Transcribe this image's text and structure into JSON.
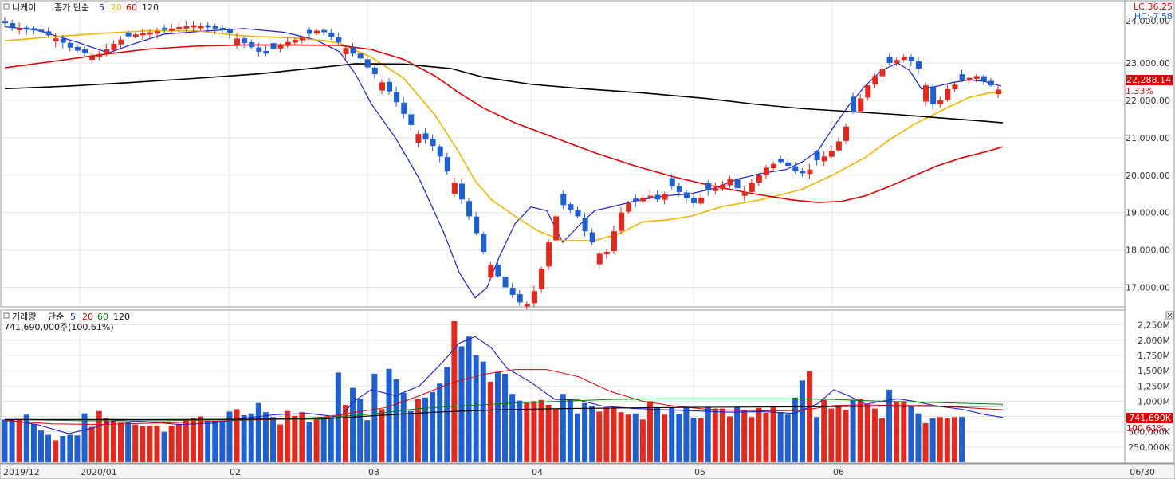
{
  "price_panel": {
    "title": "니케이",
    "ma_caption": "종가 단순",
    "ma_periods": [
      "5",
      "20",
      "60",
      "120"
    ],
    "ma_colors": [
      "#1b1bd6",
      "#f0b400",
      "#e00000",
      "#000000"
    ],
    "lc_label": "LC:36.25",
    "hc_label": "HC:-7.58",
    "top_tick_partial": "24,000.00",
    "current_value": "22,288.14",
    "current_change": "1.33%"
  },
  "volume_panel": {
    "title": "거래량",
    "ma_caption": "단순",
    "ma_periods": [
      "5",
      "20",
      "60",
      "120"
    ],
    "ma_colors": [
      "#1b1bd6",
      "#e00000",
      "#008000",
      "#000000"
    ],
    "subtitle": "741,690,000주(100.61%)",
    "current_value": "741,690K",
    "current_pct": "100.61%"
  },
  "x_axis": {
    "labels": [
      "2019/12",
      "2020/01",
      "02",
      "03",
      "04",
      "05",
      "06"
    ],
    "end_label": "06/30"
  },
  "colors": {
    "up": "#e0291f",
    "down": "#1f5fcf",
    "grid": "#e4e4e4",
    "frame": "#9a9a9a"
  },
  "chart_data": [
    {
      "type": "candlestick",
      "title": "니케이",
      "ylim": [
        16500,
        24300
      ],
      "y_ticks": [
        "17,000.00",
        "18,000.00",
        "19,000.00",
        "20,000.00",
        "21,000.00",
        "22,000.00",
        "23,000.00"
      ],
      "y_tick_values": [
        17000,
        18000,
        19000,
        20000,
        21000,
        22000,
        23000
      ],
      "closes": [
        24066,
        23954,
        23934,
        23889,
        23868,
        23830,
        23740,
        23655,
        23542,
        23410,
        23330,
        23260,
        23180,
        23240,
        23365,
        23510,
        23625,
        23710,
        23760,
        23800,
        23818,
        23844,
        23880,
        23920,
        23960,
        23980,
        24010,
        23990,
        23950,
        23922,
        23880,
        23810,
        23650,
        23530,
        23420,
        23300,
        23250,
        23380,
        23480,
        23560,
        23620,
        23680,
        23780,
        23860,
        23820,
        23700,
        23550,
        23400,
        23250,
        23120,
        22880,
        22700,
        22480,
        22240,
        21950,
        21640,
        21340,
        21100,
        20950,
        20780,
        20500,
        20100,
        19800,
        19350,
        18900,
        18450,
        17950,
        17600,
        17300,
        17000,
        16800,
        16600,
        16560,
        16900,
        17500,
        18200,
        18900,
        19200,
        19080,
        18900,
        18500,
        18200,
        17900,
        17950,
        18500,
        19000,
        19250,
        19300,
        19400,
        19450,
        19350,
        19500,
        19700,
        19550,
        19380,
        19250,
        19400,
        19600,
        19650,
        19750,
        19900,
        19650,
        19550,
        19800,
        20000,
        20200,
        20300,
        20350,
        20250,
        20100,
        20050,
        20150,
        20400,
        20500,
        20650,
        20900,
        21300,
        21700,
        22050,
        22400,
        22650,
        22830,
        23000,
        23080,
        23150,
        23050,
        22850,
        22400,
        21900,
        22000,
        22300,
        22420,
        22550,
        22600,
        22650,
        22500,
        22400,
        22288
      ],
      "ma5_points": [
        [
          0,
          23970
        ],
        [
          40,
          23880
        ],
        [
          90,
          23560
        ],
        [
          130,
          23270
        ],
        [
          160,
          23500
        ],
        [
          200,
          23770
        ],
        [
          250,
          23850
        ],
        [
          300,
          23920
        ],
        [
          350,
          23820
        ],
        [
          390,
          23620
        ],
        [
          420,
          23300
        ],
        [
          440,
          22700
        ],
        [
          460,
          21900
        ],
        [
          490,
          21000
        ],
        [
          520,
          19900
        ],
        [
          550,
          18500
        ],
        [
          570,
          17400
        ],
        [
          590,
          16720
        ],
        [
          605,
          17000
        ],
        [
          620,
          17800
        ],
        [
          640,
          18700
        ],
        [
          660,
          19150
        ],
        [
          680,
          19050
        ],
        [
          700,
          18200
        ],
        [
          720,
          18650
        ],
        [
          740,
          19050
        ],
        [
          770,
          19200
        ],
        [
          800,
          19350
        ],
        [
          830,
          19450
        ],
        [
          860,
          19500
        ],
        [
          890,
          19650
        ],
        [
          920,
          19900
        ],
        [
          950,
          20050
        ],
        [
          980,
          20150
        ],
        [
          1000,
          20350
        ],
        [
          1020,
          20650
        ],
        [
          1040,
          21300
        ],
        [
          1060,
          21900
        ],
        [
          1080,
          22400
        ],
        [
          1100,
          22800
        ],
        [
          1120,
          23000
        ],
        [
          1135,
          22800
        ],
        [
          1150,
          22300
        ],
        [
          1170,
          22380
        ],
        [
          1190,
          22480
        ],
        [
          1210,
          22550
        ],
        [
          1230,
          22500
        ],
        [
          1250,
          22380
        ]
      ],
      "ma20_points": [
        [
          0,
          23590
        ],
        [
          60,
          23700
        ],
        [
          120,
          23790
        ],
        [
          180,
          23860
        ],
        [
          240,
          23860
        ],
        [
          300,
          23720
        ],
        [
          360,
          23670
        ],
        [
          400,
          23600
        ],
        [
          420,
          23530
        ],
        [
          460,
          23150
        ],
        [
          500,
          22600
        ],
        [
          540,
          21600
        ],
        [
          570,
          20600
        ],
        [
          590,
          19850
        ],
        [
          610,
          19350
        ],
        [
          640,
          18900
        ],
        [
          670,
          18500
        ],
        [
          700,
          18250
        ],
        [
          740,
          18250
        ],
        [
          770,
          18430
        ],
        [
          800,
          18750
        ],
        [
          830,
          18800
        ],
        [
          860,
          18900
        ],
        [
          900,
          19160
        ],
        [
          950,
          19350
        ],
        [
          1000,
          19620
        ],
        [
          1040,
          20020
        ],
        [
          1080,
          20480
        ],
        [
          1110,
          20950
        ],
        [
          1140,
          21350
        ],
        [
          1180,
          21780
        ],
        [
          1210,
          22080
        ],
        [
          1235,
          22200
        ],
        [
          1252,
          22210
        ]
      ],
      "ma60_points": [
        [
          0,
          22870
        ],
        [
          60,
          23040
        ],
        [
          120,
          23220
        ],
        [
          180,
          23370
        ],
        [
          240,
          23450
        ],
        [
          300,
          23480
        ],
        [
          360,
          23480
        ],
        [
          420,
          23470
        ],
        [
          460,
          23360
        ],
        [
          500,
          23100
        ],
        [
          540,
          22650
        ],
        [
          570,
          22200
        ],
        [
          600,
          21800
        ],
        [
          640,
          21400
        ],
        [
          690,
          21000
        ],
        [
          740,
          20600
        ],
        [
          790,
          20250
        ],
        [
          840,
          19950
        ],
        [
          890,
          19700
        ],
        [
          940,
          19500
        ],
        [
          990,
          19330
        ],
        [
          1020,
          19270
        ],
        [
          1050,
          19300
        ],
        [
          1080,
          19450
        ],
        [
          1110,
          19700
        ],
        [
          1140,
          19980
        ],
        [
          1170,
          20250
        ],
        [
          1200,
          20460
        ],
        [
          1230,
          20620
        ],
        [
          1252,
          20760
        ]
      ],
      "ma120_points": [
        [
          0,
          22310
        ],
        [
          80,
          22380
        ],
        [
          160,
          22480
        ],
        [
          240,
          22590
        ],
        [
          320,
          22710
        ],
        [
          400,
          22890
        ],
        [
          440,
          22980
        ],
        [
          500,
          22970
        ],
        [
          560,
          22850
        ],
        [
          600,
          22620
        ],
        [
          660,
          22430
        ],
        [
          720,
          22320
        ],
        [
          800,
          22200
        ],
        [
          880,
          22050
        ],
        [
          940,
          21900
        ],
        [
          1000,
          21780
        ],
        [
          1060,
          21700
        ],
        [
          1120,
          21620
        ],
        [
          1180,
          21520
        ],
        [
          1230,
          21440
        ],
        [
          1252,
          21400
        ]
      ],
      "markers": [
        {
          "text": "",
          "x": 120,
          "value": 23300
        }
      ]
    },
    {
      "type": "bar",
      "title": "거래량",
      "unit": "K",
      "ylim": [
        0,
        2350000
      ],
      "y_ticks": [
        "250,000K",
        "500,000K",
        "750,000K",
        "1,000M",
        "1,250M",
        "1,500M",
        "1,750M",
        "2,000M",
        "2,250M"
      ],
      "y_tick_values": [
        250000,
        500000,
        750000,
        1000000,
        1250000,
        1500000,
        1750000,
        2000000,
        2250000
      ],
      "values": [
        700000,
        700000,
        710000,
        780000,
        630000,
        520000,
        450000,
        360000,
        430000,
        450000,
        440000,
        800000,
        580000,
        840000,
        720000,
        710000,
        650000,
        660000,
        620000,
        590000,
        600000,
        600000,
        500000,
        600000,
        620000,
        700000,
        720000,
        750000,
        680000,
        680000,
        680000,
        830000,
        870000,
        770000,
        800000,
        970000,
        820000,
        740000,
        620000,
        840000,
        760000,
        820000,
        660000,
        700000,
        710000,
        710000,
        1470000,
        940000,
        1220000,
        1040000,
        690000,
        1450000,
        870000,
        1530000,
        1360000,
        1140000,
        840000,
        1040000,
        1060000,
        1150000,
        1290000,
        1560000,
        2310000,
        1900000,
        2060000,
        1750000,
        1650000,
        1320000,
        1480000,
        1450000,
        1120000,
        1010000,
        970000,
        1000000,
        1020000,
        940000,
        870000,
        1120000,
        1020000,
        800000,
        970000,
        920000,
        830000,
        900000,
        900000,
        820000,
        780000,
        800000,
        700000,
        1000000,
        900000,
        780000,
        900000,
        790000,
        910000,
        730000,
        720000,
        900000,
        880000,
        880000,
        750000,
        900000,
        850000,
        740000,
        890000,
        810000,
        900000,
        820000,
        780000,
        1060000,
        1340000,
        1490000,
        740000,
        1020000,
        880000,
        930000,
        860000,
        1020000,
        1040000,
        950000,
        880000,
        720000,
        1190000,
        990000,
        1000000,
        930000,
        800000,
        640000,
        720000,
        740000,
        720000,
        740000,
        742000
      ],
      "directions_note": "colors per candle direction",
      "ma5_points": [
        [
          0,
          700000
        ],
        [
          40,
          620000
        ],
        [
          80,
          470000
        ],
        [
          110,
          560000
        ],
        [
          140,
          690000
        ],
        [
          180,
          660000
        ],
        [
          220,
          620000
        ],
        [
          260,
          640000
        ],
        [
          300,
          720000
        ],
        [
          340,
          780000
        ],
        [
          380,
          800000
        ],
        [
          420,
          740000
        ],
        [
          440,
          1020000
        ],
        [
          460,
          1190000
        ],
        [
          490,
          1090000
        ],
        [
          520,
          1250000
        ],
        [
          550,
          1650000
        ],
        [
          570,
          1950000
        ],
        [
          590,
          2060000
        ],
        [
          610,
          1880000
        ],
        [
          630,
          1540000
        ],
        [
          660,
          1310000
        ],
        [
          690,
          1030000
        ],
        [
          720,
          1020000
        ],
        [
          750,
          920000
        ],
        [
          790,
          880000
        ],
        [
          830,
          860000
        ],
        [
          870,
          840000
        ],
        [
          910,
          820000
        ],
        [
          950,
          830000
        ],
        [
          990,
          800000
        ],
        [
          1020,
          960000
        ],
        [
          1040,
          1190000
        ],
        [
          1060,
          1080000
        ],
        [
          1080,
          950000
        ],
        [
          1100,
          1000000
        ],
        [
          1120,
          1040000
        ],
        [
          1140,
          1000000
        ],
        [
          1170,
          920000
        ],
        [
          1200,
          870000
        ],
        [
          1230,
          780000
        ],
        [
          1252,
          735000
        ]
      ],
      "ma20_points": [
        [
          0,
          680000
        ],
        [
          60,
          630000
        ],
        [
          120,
          620000
        ],
        [
          180,
          640000
        ],
        [
          240,
          660000
        ],
        [
          300,
          690000
        ],
        [
          360,
          710000
        ],
        [
          400,
          740000
        ],
        [
          440,
          820000
        ],
        [
          480,
          900000
        ],
        [
          520,
          1090000
        ],
        [
          560,
          1300000
        ],
        [
          600,
          1440000
        ],
        [
          640,
          1520000
        ],
        [
          680,
          1520000
        ],
        [
          720,
          1400000
        ],
        [
          760,
          1160000
        ],
        [
          800,
          1000000
        ],
        [
          840,
          920000
        ],
        [
          880,
          870000
        ],
        [
          920,
          850000
        ],
        [
          960,
          840000
        ],
        [
          1000,
          850000
        ],
        [
          1040,
          930000
        ],
        [
          1080,
          940000
        ],
        [
          1120,
          930000
        ],
        [
          1160,
          930000
        ],
        [
          1200,
          900000
        ],
        [
          1252,
          860000
        ]
      ],
      "ma60_points": [
        [
          0,
          700000
        ],
        [
          100,
          680000
        ],
        [
          200,
          680000
        ],
        [
          300,
          700000
        ],
        [
          400,
          730000
        ],
        [
          460,
          790000
        ],
        [
          520,
          880000
        ],
        [
          580,
          930000
        ],
        [
          640,
          970000
        ],
        [
          700,
          1000000
        ],
        [
          760,
          1030000
        ],
        [
          820,
          1040000
        ],
        [
          900,
          1040000
        ],
        [
          980,
          1040000
        ],
        [
          1040,
          1030000
        ],
        [
          1100,
          1000000
        ],
        [
          1160,
          980000
        ],
        [
          1252,
          950000
        ]
      ],
      "ma120_points": [
        [
          0,
          700000
        ],
        [
          200,
          700000
        ],
        [
          400,
          710000
        ],
        [
          460,
          760000
        ],
        [
          540,
          820000
        ],
        [
          620,
          860000
        ],
        [
          700,
          880000
        ],
        [
          780,
          890000
        ],
        [
          860,
          900000
        ],
        [
          940,
          905000
        ],
        [
          1020,
          910000
        ],
        [
          1100,
          920000
        ],
        [
          1180,
          915000
        ],
        [
          1252,
          920000
        ]
      ]
    }
  ]
}
